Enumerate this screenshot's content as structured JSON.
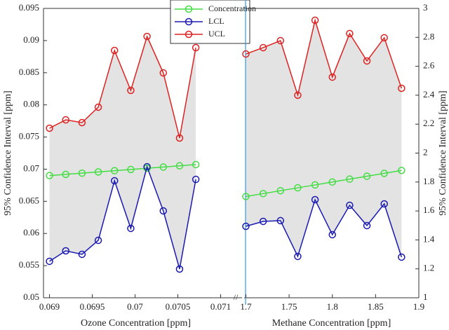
{
  "chart_data": [
    {
      "type": "line",
      "xlabel": "Ozone Concentration [ppm]",
      "ylabel": "95% Confidence Interval [ppm]",
      "yaxis_side": "left",
      "legend": "upper right",
      "band_color": "#e3e3e3",
      "x": [
        0.069,
        0.06919,
        0.06938,
        0.06957,
        0.06976,
        0.06995,
        0.07014,
        0.07033,
        0.07052,
        0.07071
      ],
      "series": [
        {
          "name": "Concentration",
          "color": "#44dd44",
          "values": [
            0.069,
            0.06919,
            0.06938,
            0.06957,
            0.06976,
            0.06995,
            0.07014,
            0.07033,
            0.07052,
            0.07071
          ]
        },
        {
          "name": "LCL",
          "color": "#1a1ab0",
          "values": [
            0.05567,
            0.0573,
            0.05676,
            0.05893,
            0.0682,
            0.06079,
            0.07037,
            0.06351,
            0.05447,
            0.06841
          ]
        },
        {
          "name": "UCL",
          "color": "#dd2222",
          "values": [
            0.07637,
            0.07767,
            0.07724,
            0.07964,
            0.08846,
            0.08225,
            0.09064,
            0.08497,
            0.07484,
            0.0889
          ]
        }
      ],
      "xlim": [
        0.06893,
        0.07125
      ],
      "xticks": [
        0.069,
        0.0695,
        0.07,
        0.0705,
        0.071
      ],
      "ylim": [
        0.05,
        0.095
      ],
      "yticks": [
        0.05,
        0.055,
        0.06,
        0.065,
        0.07,
        0.075,
        0.08,
        0.085,
        0.09,
        0.095
      ]
    },
    {
      "type": "line",
      "xlabel": "Methane Concentration [ppm]",
      "ylabel": "95% Confidence Interval [ppm]",
      "yaxis_side": "right",
      "band_color": "#e3e3e3",
      "x": [
        1.7,
        1.72,
        1.74,
        1.76,
        1.78,
        1.8,
        1.82,
        1.84,
        1.86,
        1.88
      ],
      "series": [
        {
          "name": "Concentration",
          "color": "#44dd44",
          "values": [
            1.7,
            1.72,
            1.74,
            1.76,
            1.78,
            1.8,
            1.82,
            1.84,
            1.86,
            1.88
          ]
        },
        {
          "name": "LCL",
          "color": "#1a1ab0",
          "values": [
            1.494,
            1.528,
            1.533,
            1.286,
            1.678,
            1.436,
            1.639,
            1.499,
            1.649,
            1.281
          ]
        },
        {
          "name": "UCL",
          "color": "#dd2222",
          "values": [
            2.685,
            2.729,
            2.777,
            2.4,
            2.918,
            2.525,
            2.826,
            2.637,
            2.797,
            2.448
          ]
        }
      ],
      "xlim": [
        1.698,
        1.9
      ],
      "xticks": [
        1.7,
        1.75,
        1.8,
        1.85,
        1.9
      ],
      "ylim": [
        1,
        3
      ],
      "yticks": [
        1,
        1.2,
        1.4,
        1.6,
        1.8,
        2,
        2.2,
        2.4,
        2.6,
        2.8,
        3
      ]
    }
  ]
}
